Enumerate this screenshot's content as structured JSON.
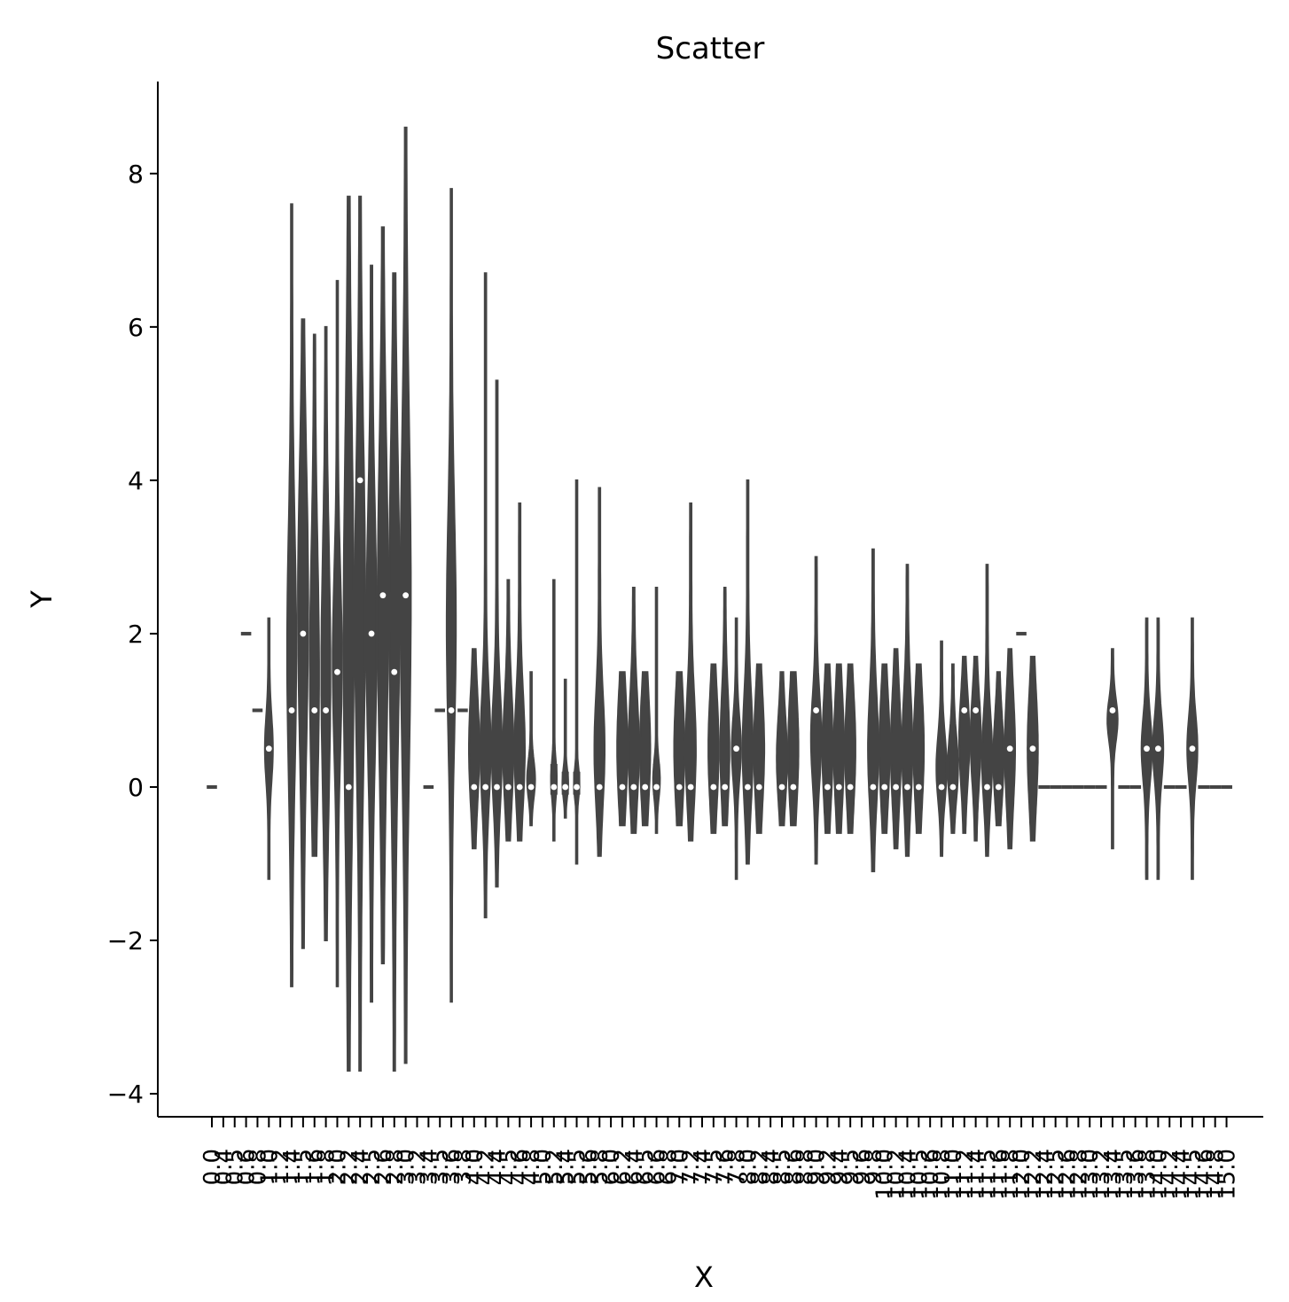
{
  "chart_data": {
    "type": "violin",
    "title": "Scatter",
    "xlabel": "X",
    "ylabel": "Y",
    "ylim": [
      -4.3,
      9.2
    ],
    "yticks": [
      -4,
      -2,
      0,
      2,
      4,
      6,
      8
    ],
    "ytick_labels": [
      "−4",
      "−2",
      "0",
      "2",
      "4",
      "6",
      "8"
    ],
    "grid": false,
    "legend": "none",
    "colors": {
      "violin": "#444444",
      "median": "#ffffff",
      "axis": "#000000"
    },
    "categories": [
      "0.0",
      "0.4",
      "0.5",
      "0.6",
      "0.8",
      "1.0",
      "1.2",
      "1.4",
      "1.5",
      "1.6",
      "1.8",
      "2.0",
      "2.2",
      "2.4",
      "2.5",
      "2.6",
      "2.8",
      "3.0",
      "3.2",
      "3.4",
      "3.5",
      "3.6",
      "3.8",
      "4.0",
      "4.2",
      "4.4",
      "4.5",
      "4.6",
      "4.8",
      "5.0",
      "5.2",
      "5.4",
      "5.5",
      "5.6",
      "5.8",
      "6.0",
      "6.2",
      "6.4",
      "6.5",
      "6.6",
      "6.8",
      "7.0",
      "7.2",
      "7.4",
      "7.5",
      "7.6",
      "7.8",
      "8.0",
      "8.2",
      "8.4",
      "8.5",
      "8.6",
      "8.8",
      "9.0",
      "9.2",
      "9.4",
      "9.5",
      "9.6",
      "9.8",
      "10.0",
      "10.2",
      "10.4",
      "10.5",
      "10.6",
      "10.8",
      "11.0",
      "11.2",
      "11.4",
      "11.5",
      "11.6",
      "11.8",
      "12.0",
      "12.2",
      "12.4",
      "12.5",
      "12.6",
      "12.8",
      "13.0",
      "13.2",
      "13.4",
      "13.5",
      "13.6",
      "13.8",
      "14.0",
      "14.2",
      "14.4",
      "14.5",
      "14.6",
      "14.8",
      "15.0"
    ],
    "violins": [
      {
        "min": 0,
        "max": 0,
        "q1": 0,
        "q3": 0,
        "median": 0,
        "w": 0.9
      },
      null,
      null,
      {
        "min": 2,
        "max": 2,
        "q1": 2,
        "q3": 2,
        "median": 2,
        "w": 0.9
      },
      {
        "min": 1,
        "max": 1,
        "q1": 1,
        "q3": 1,
        "median": 1,
        "w": 0.9
      },
      {
        "min": -1.2,
        "max": 2.2,
        "q1": 0.15,
        "q3": 0.85,
        "median": 0.5,
        "w": 0.7
      },
      null,
      {
        "min": -2.6,
        "max": 7.6,
        "q1": 0.4,
        "q3": 3.1,
        "median": 1.0,
        "w": 0.8
      },
      {
        "min": -2.1,
        "max": 6.1,
        "q1": 0.9,
        "q3": 3.85,
        "median": 2.0,
        "w": 0.9
      },
      {
        "min": -0.9,
        "max": 5.9,
        "q1": 0.15,
        "q3": 2.85,
        "median": 1.0,
        "w": 0.8
      },
      {
        "min": -2.0,
        "max": 6.0,
        "q1": 0.15,
        "q3": 2.85,
        "median": 1.0,
        "w": 0.8
      },
      {
        "min": -2.6,
        "max": 6.6,
        "q1": 0.65,
        "q3": 2.6,
        "median": 1.5,
        "w": 0.8
      },
      {
        "min": -3.7,
        "max": 7.7,
        "q1": -0.1,
        "q3": 4.1,
        "median": 0,
        "w": 0.9
      },
      {
        "min": -3.7,
        "max": 7.7,
        "q1": 0.65,
        "q3": 4.1,
        "median": 4.0,
        "w": 0.9
      },
      {
        "min": -2.8,
        "max": 6.8,
        "q1": 0.65,
        "q3": 3.35,
        "median": 2.0,
        "w": 0.9
      },
      {
        "min": -2.3,
        "max": 7.3,
        "q1": 0.65,
        "q3": 4.1,
        "median": 2.5,
        "w": 0.9
      },
      {
        "min": -3.7,
        "max": 6.7,
        "q1": 0.65,
        "q3": 4.1,
        "median": 1.5,
        "w": 0.9
      },
      {
        "min": -3.6,
        "max": 8.6,
        "q1": 0.65,
        "q3": 4.35,
        "median": 2.5,
        "w": 0.9
      },
      null,
      {
        "min": 0,
        "max": 0,
        "q1": 0,
        "q3": 0,
        "median": 0,
        "w": 0.9
      },
      {
        "min": 1,
        "max": 1,
        "q1": 1,
        "q3": 1,
        "median": 1,
        "w": 0.9
      },
      {
        "min": -2.8,
        "max": 7.8,
        "q1": 0.9,
        "q3": 3.35,
        "median": 1.0,
        "w": 0.8
      },
      {
        "min": 1,
        "max": 1,
        "q1": 1,
        "q3": 1,
        "median": 1,
        "w": 0.9
      },
      {
        "min": -0.8,
        "max": 1.8,
        "q1": -0.1,
        "q3": 1.1,
        "median": 0,
        "w": 0.9
      },
      {
        "min": -1.7,
        "max": 6.7,
        "q1": -0.1,
        "q3": 1.1,
        "median": 0,
        "w": 0.9
      },
      {
        "min": -1.3,
        "max": 5.3,
        "q1": -0.1,
        "q3": 1.1,
        "median": 0,
        "w": 0.9
      },
      {
        "min": -0.7,
        "max": 2.7,
        "q1": -0.1,
        "q3": 1.1,
        "median": 0,
        "w": 0.9
      },
      {
        "min": -0.7,
        "max": 3.7,
        "q1": -0.1,
        "q3": 1.1,
        "median": 0,
        "w": 0.9
      },
      {
        "min": -0.5,
        "max": 1.5,
        "q1": -0.1,
        "q3": 0.3,
        "median": 0,
        "w": 0.7
      },
      null,
      {
        "min": -0.7,
        "max": 2.7,
        "q1": -0.1,
        "q3": 0.3,
        "median": 0,
        "w": 0.5
      },
      {
        "min": -0.4,
        "max": 1.4,
        "q1": -0.1,
        "q3": 0.2,
        "median": 0,
        "w": 0.5
      },
      {
        "min": -1.0,
        "max": 4.0,
        "q1": -0.1,
        "q3": 0.2,
        "median": 0,
        "w": 0.5
      },
      null,
      {
        "min": -0.9,
        "max": 3.9,
        "q1": -0.1,
        "q3": 1.1,
        "median": 0,
        "w": 0.9
      },
      null,
      {
        "min": -0.5,
        "max": 1.5,
        "q1": -0.1,
        "q3": 1.1,
        "median": 0,
        "w": 0.9
      },
      {
        "min": -0.6,
        "max": 2.6,
        "q1": -0.1,
        "q3": 1.1,
        "median": 0,
        "w": 0.9
      },
      {
        "min": -0.5,
        "max": 1.5,
        "q1": -0.1,
        "q3": 1.1,
        "median": 0,
        "w": 0.9
      },
      {
        "min": -0.6,
        "max": 2.6,
        "q1": -0.1,
        "q3": 0.3,
        "median": 0,
        "w": 0.6
      },
      null,
      {
        "min": -0.5,
        "max": 1.5,
        "q1": -0.1,
        "q3": 1.1,
        "median": 0,
        "w": 0.9
      },
      {
        "min": -0.7,
        "max": 3.7,
        "q1": -0.1,
        "q3": 1.1,
        "median": 0,
        "w": 0.9
      },
      null,
      {
        "min": -0.6,
        "max": 1.6,
        "q1": -0.1,
        "q3": 1.1,
        "median": 0,
        "w": 0.9
      },
      {
        "min": -0.5,
        "max": 2.6,
        "q1": -0.1,
        "q3": 1.1,
        "median": 0,
        "w": 0.8
      },
      {
        "min": -1.2,
        "max": 2.2,
        "q1": 0.15,
        "q3": 0.85,
        "median": 0.5,
        "w": 0.8
      },
      {
        "min": -1.0,
        "max": 4.0,
        "q1": -0.1,
        "q3": 1.1,
        "median": 0,
        "w": 0.9
      },
      {
        "min": -0.6,
        "max": 1.6,
        "q1": -0.1,
        "q3": 1.1,
        "median": 0,
        "w": 0.9
      },
      null,
      {
        "min": -0.5,
        "max": 1.5,
        "q1": -0.1,
        "q3": 0.85,
        "median": 0,
        "w": 0.9
      },
      {
        "min": -0.5,
        "max": 1.5,
        "q1": -0.1,
        "q3": 1.1,
        "median": 0,
        "w": 0.9
      },
      null,
      {
        "min": -1.0,
        "max": 3.0,
        "q1": 0.15,
        "q3": 1.1,
        "median": 1.0,
        "w": 0.9
      },
      {
        "min": -0.6,
        "max": 1.6,
        "q1": -0.1,
        "q3": 1.1,
        "median": 0,
        "w": 0.9
      },
      {
        "min": -0.6,
        "max": 1.6,
        "q1": -0.1,
        "q3": 1.1,
        "median": 0,
        "w": 0.9
      },
      {
        "min": -0.6,
        "max": 1.6,
        "q1": -0.1,
        "q3": 1.1,
        "median": 0,
        "w": 0.9
      },
      null,
      {
        "min": -1.1,
        "max": 3.1,
        "q1": -0.1,
        "q3": 1.1,
        "median": 0,
        "w": 0.9
      },
      {
        "min": -0.6,
        "max": 1.6,
        "q1": -0.1,
        "q3": 1.1,
        "median": 0,
        "w": 0.9
      },
      {
        "min": -0.8,
        "max": 1.8,
        "q1": -0.1,
        "q3": 1.1,
        "median": 0,
        "w": 0.9
      },
      {
        "min": -0.9,
        "max": 2.9,
        "q1": -0.1,
        "q3": 1.1,
        "median": 0,
        "w": 0.9
      },
      {
        "min": -0.6,
        "max": 1.6,
        "q1": -0.1,
        "q3": 1.1,
        "median": 0,
        "w": 0.9
      },
      null,
      {
        "min": -0.9,
        "max": 1.9,
        "q1": -0.1,
        "q3": 0.6,
        "median": 0,
        "w": 0.9
      },
      {
        "min": -0.6,
        "max": 1.6,
        "q1": -0.1,
        "q3": 0.6,
        "median": 0,
        "w": 0.9
      },
      {
        "min": -0.6,
        "max": 1.7,
        "q1": 0.15,
        "q3": 1.1,
        "median": 1.0,
        "w": 0.9
      },
      {
        "min": -0.7,
        "max": 1.7,
        "q1": 0.15,
        "q3": 1.1,
        "median": 1.0,
        "w": 0.9
      },
      {
        "min": -0.9,
        "max": 2.9,
        "q1": -0.1,
        "q3": 0.85,
        "median": 0,
        "w": 0.9
      },
      {
        "min": -0.5,
        "max": 1.5,
        "q1": -0.1,
        "q3": 0.85,
        "median": 0,
        "w": 0.9
      },
      {
        "min": -0.8,
        "max": 1.8,
        "q1": -0.1,
        "q3": 1.1,
        "median": 0.5,
        "w": 0.9
      },
      {
        "min": 2,
        "max": 2,
        "q1": 2,
        "q3": 2,
        "median": 2,
        "w": 0.9
      },
      {
        "min": -0.7,
        "max": 1.7,
        "q1": -0.1,
        "q3": 1.1,
        "median": 0.5,
        "w": 0.9
      },
      {
        "min": 0,
        "max": 0,
        "q1": 0,
        "q3": 0,
        "median": 0,
        "w": 1.0
      },
      {
        "min": 0,
        "max": 0,
        "q1": 0,
        "q3": 0,
        "median": 0,
        "w": 1.0
      },
      {
        "min": 0,
        "max": 0,
        "q1": 0,
        "q3": 0,
        "median": 0,
        "w": 1.0
      },
      {
        "min": 0,
        "max": 0,
        "q1": 0,
        "q3": 0,
        "median": 0,
        "w": 1.0
      },
      {
        "min": 0,
        "max": 0,
        "q1": 0,
        "q3": 0,
        "median": 0,
        "w": 1.0
      },
      {
        "min": 0,
        "max": 0,
        "q1": 0,
        "q3": 0,
        "median": 0,
        "w": 1.0
      },
      {
        "min": -0.8,
        "max": 1.8,
        "q1": 0.65,
        "q3": 1.1,
        "median": 1.0,
        "w": 0.9
      },
      {
        "min": 0,
        "max": 0,
        "q1": 0,
        "q3": 0,
        "median": 0,
        "w": 1.0
      },
      {
        "min": 0,
        "max": 0,
        "q1": 0,
        "q3": 0,
        "median": 0,
        "w": 1.0
      },
      {
        "min": -1.2,
        "max": 2.2,
        "q1": 0.15,
        "q3": 0.85,
        "median": 0.5,
        "w": 0.9
      },
      {
        "min": -1.2,
        "max": 2.2,
        "q1": 0.15,
        "q3": 0.85,
        "median": 0.5,
        "w": 0.9
      },
      {
        "min": 0,
        "max": 0,
        "q1": 0,
        "q3": 0,
        "median": 0,
        "w": 1.0
      },
      {
        "min": 0,
        "max": 0,
        "q1": 0,
        "q3": 0,
        "median": 0,
        "w": 1.0
      },
      {
        "min": -1.2,
        "max": 2.2,
        "q1": 0.15,
        "q3": 0.85,
        "median": 0.5,
        "w": 0.9
      },
      {
        "min": 0,
        "max": 0,
        "q1": 0,
        "q3": 0,
        "median": 0,
        "w": 1.0
      },
      {
        "min": 0,
        "max": 0,
        "q1": 0,
        "q3": 0,
        "median": 0,
        "w": 1.0
      },
      {
        "min": 0,
        "max": 0,
        "q1": 0,
        "q3": 0,
        "median": 0,
        "w": 1.0
      }
    ]
  }
}
